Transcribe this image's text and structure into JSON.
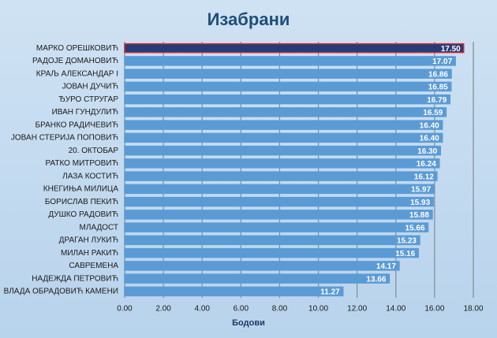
{
  "chart_data": {
    "type": "barh",
    "title": "Изабрани",
    "xlabel": "Бодови",
    "categories": [
      "МАРКО ОРЕШКОВИЋ",
      "РАДОЈЕ ДОМАНОВИЋ",
      "КРАЉ АЛЕКСАНДАР I",
      "ЈОВАН ДУЧИЋ",
      "ЂУРО СТРУГАР",
      "ИВАН ГУНДУЛИЋ",
      "БРАНКО РАДИЧЕВИЋ",
      "ЈОВАН СТЕРИЈА ПОПОВИЋ",
      "20. ОКТОБАР",
      "РАТКО МИТРОВИЋ",
      "ЛАЗА КОСТИЋ",
      "КНЕГИЊА МИЛИЦА",
      "БОРИСЛАВ ПЕКИЋ",
      "ДУШКО РАДОВИЋ",
      "МЛАДОСТ",
      "ДРАГАН ЛУКИЋ",
      "МИЛАН РАКИЋ",
      "САВРЕМЕНА",
      "НАДЕЖДА ПЕТРОВИЋ",
      "ВЛАДА ОБРАДОВИЋ КАМЕНИ"
    ],
    "values": [
      17.5,
      17.07,
      16.86,
      16.85,
      16.79,
      16.59,
      16.4,
      16.4,
      16.3,
      16.24,
      16.12,
      15.97,
      15.93,
      15.88,
      15.66,
      15.23,
      15.16,
      14.17,
      13.66,
      11.27
    ],
    "value_labels": [
      "17.50",
      "17.07",
      "16.86",
      "16.85",
      "16.79",
      "16.59",
      "16.40",
      "16.40",
      "16.30",
      "16.24",
      "16.12",
      "15.97",
      "15.93",
      "15.88",
      "15.66",
      "15.23",
      "15.16",
      "14.17",
      "13.66",
      "11.27"
    ],
    "colors": [
      "#1f3f7a",
      "#5b9bd5",
      "#5b9bd5",
      "#5b9bd5",
      "#5b9bd5",
      "#5b9bd5",
      "#5b9bd5",
      "#5b9bd5",
      "#5b9bd5",
      "#5b9bd5",
      "#5b9bd5",
      "#5b9bd5",
      "#5b9bd5",
      "#5b9bd5",
      "#5b9bd5",
      "#5b9bd5",
      "#5b9bd5",
      "#5b9bd5",
      "#5b9bd5",
      "#5b9bd5"
    ],
    "edge_colors": [
      "#e0202a",
      "#5b9bd5",
      "#5b9bd5",
      "#5b9bd5",
      "#5b9bd5",
      "#5b9bd5",
      "#5b9bd5",
      "#5b9bd5",
      "#5b9bd5",
      "#5b9bd5",
      "#5b9bd5",
      "#5b9bd5",
      "#5b9bd5",
      "#5b9bd5",
      "#5b9bd5",
      "#5b9bd5",
      "#5b9bd5",
      "#5b9bd5",
      "#5b9bd5",
      "#5b9bd5"
    ],
    "xlim": [
      0,
      18
    ],
    "xticks": [
      {
        "value": 0,
        "label": "0.00"
      },
      {
        "value": 2,
        "label": "2.00"
      },
      {
        "value": 4,
        "label": "4.00"
      },
      {
        "value": 6,
        "label": "6.00"
      },
      {
        "value": 8,
        "label": "8.00"
      },
      {
        "value": 10,
        "label": "10.00"
      },
      {
        "value": 12,
        "label": "12.00"
      },
      {
        "value": 14,
        "label": "14.00"
      },
      {
        "value": 16,
        "label": "16.00"
      },
      {
        "value": 18,
        "label": "18.00"
      }
    ],
    "grid": true
  }
}
